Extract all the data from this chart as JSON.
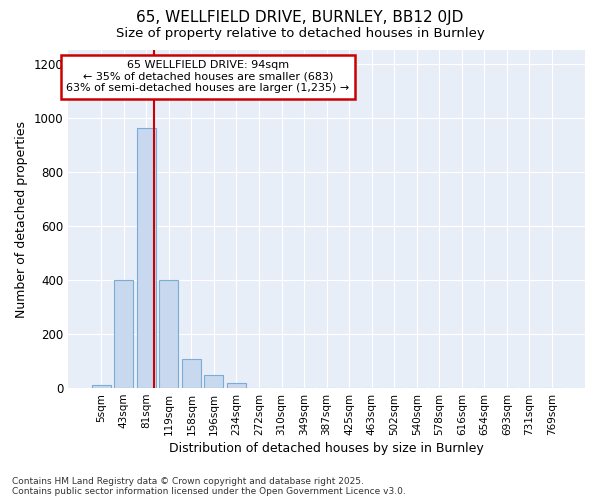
{
  "title1": "65, WELLFIELD DRIVE, BURNLEY, BB12 0JD",
  "title2": "Size of property relative to detached houses in Burnley",
  "xlabel": "Distribution of detached houses by size in Burnley",
  "ylabel": "Number of detached properties",
  "categories": [
    "5sqm",
    "43sqm",
    "81sqm",
    "119sqm",
    "158sqm",
    "196sqm",
    "234sqm",
    "272sqm",
    "310sqm",
    "349sqm",
    "387sqm",
    "425sqm",
    "463sqm",
    "502sqm",
    "540sqm",
    "578sqm",
    "616sqm",
    "654sqm",
    "693sqm",
    "731sqm",
    "769sqm"
  ],
  "values": [
    10,
    400,
    960,
    400,
    108,
    50,
    18,
    0,
    0,
    0,
    0,
    0,
    0,
    0,
    0,
    0,
    0,
    0,
    0,
    0,
    0
  ],
  "bar_color": "#c8d8ee",
  "bar_edge_color": "#7aacd4",
  "annotation_title": "65 WELLFIELD DRIVE: 94sqm",
  "annotation_line1": "← 35% of detached houses are smaller (683)",
  "annotation_line2": "63% of semi-detached houses are larger (1,235) →",
  "vline_x_index": 2,
  "ylim": [
    0,
    1250
  ],
  "yticks": [
    0,
    200,
    400,
    600,
    800,
    1000,
    1200
  ],
  "footnote1": "Contains HM Land Registry data © Crown copyright and database right 2025.",
  "footnote2": "Contains public sector information licensed under the Open Government Licence v3.0.",
  "bg_color": "#ffffff",
  "plot_bg_color": "#e8eef8",
  "grid_color": "#ffffff",
  "annotation_box_color": "#ffffff",
  "annotation_box_edge": "#cc0000",
  "vline_color": "#cc0000",
  "text_color": "#000000"
}
